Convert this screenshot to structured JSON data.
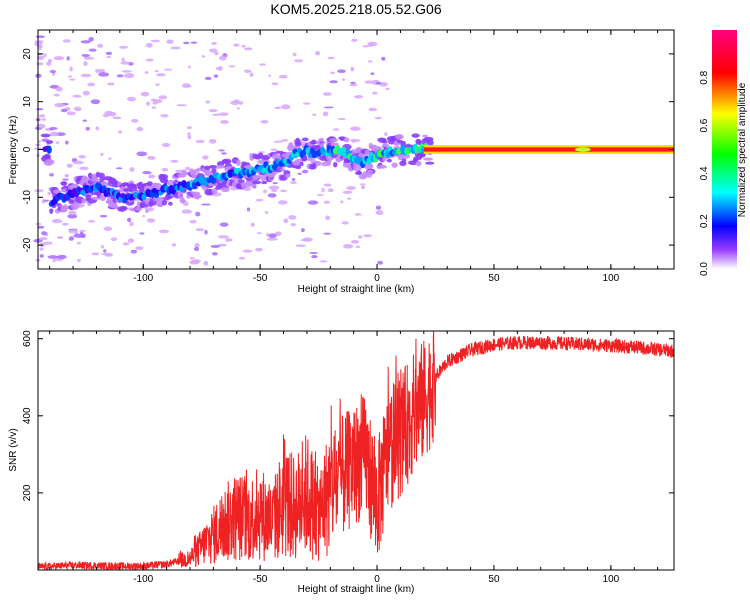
{
  "title": "KOM5.2025.218.05.52.G06",
  "chart_data": [
    {
      "type": "heatmap",
      "name": "spectrogram",
      "xlabel": "Height of straight line (km)",
      "ylabel": "Frequency (Hz)",
      "xlim": [
        -145,
        127
      ],
      "ylim": [
        -25,
        25
      ],
      "xticks": [
        -100,
        -50,
        0,
        50,
        100
      ],
      "xtick_labels": [
        "-100",
        "-50",
        "0",
        "50",
        "100"
      ],
      "yticks": [
        -20,
        -10,
        0,
        10,
        20
      ],
      "ytick_labels": [
        "-20",
        "-10",
        "0",
        "10",
        "20"
      ],
      "colorbar": {
        "label": "Normalized spectral amplitude",
        "range": [
          0,
          1
        ],
        "ticks": [
          0.0,
          0.2,
          0.4,
          0.6,
          0.8
        ],
        "tick_labels": [
          "0.0",
          "0.2",
          "0.4",
          "0.6",
          "0.8"
        ],
        "colormap": [
          "#ffffff",
          "#7b00ff",
          "#0000ff",
          "#00ffff",
          "#00ff00",
          "#ffff00",
          "#ff0000",
          "#ff0080"
        ]
      },
      "ridge": [
        {
          "x": -140,
          "y": -11
        },
        {
          "x": -130,
          "y": -9
        },
        {
          "x": -120,
          "y": -8
        },
        {
          "x": -110,
          "y": -10
        },
        {
          "x": -100,
          "y": -9.5
        },
        {
          "x": -90,
          "y": -8.5
        },
        {
          "x": -80,
          "y": -7.5
        },
        {
          "x": -70,
          "y": -6
        },
        {
          "x": -60,
          "y": -5
        },
        {
          "x": -50,
          "y": -4
        },
        {
          "x": -40,
          "y": -3
        },
        {
          "x": -35,
          "y": -1
        },
        {
          "x": -30,
          "y": -0.5
        },
        {
          "x": -25,
          "y": -1
        },
        {
          "x": -20,
          "y": -0.5
        },
        {
          "x": -15,
          "y": 0
        },
        {
          "x": -7,
          "y": -3
        },
        {
          "x": 0,
          "y": -1
        },
        {
          "x": 10,
          "y": 0
        },
        {
          "x": 20,
          "y": 0
        },
        {
          "x": 127,
          "y": 0
        }
      ]
    },
    {
      "type": "line",
      "name": "snr",
      "xlabel": "Height of straight line (km)",
      "ylabel": "SNR (v/v)",
      "xlim": [
        -145,
        127
      ],
      "ylim": [
        0,
        620
      ],
      "xticks": [
        -100,
        -50,
        0,
        50,
        100
      ],
      "xtick_labels": [
        "-100",
        "-50",
        "0",
        "50",
        "100"
      ],
      "yticks": [
        200,
        400,
        600
      ],
      "ytick_labels": [
        "200",
        "400",
        "600"
      ],
      "line_color": "#ee2222",
      "series": [
        {
          "name": "SNR",
          "x": [
            -145,
            -130,
            -110,
            -100,
            -90,
            -80,
            -75,
            -70,
            -65,
            -60,
            -55,
            -50,
            -45,
            -40,
            -35,
            -30,
            -25,
            -20,
            -15,
            -10,
            -5,
            0,
            5,
            10,
            15,
            20,
            25,
            30,
            40,
            50,
            60,
            70,
            80,
            90,
            100,
            110,
            120,
            127
          ],
          "values": [
            8,
            12,
            10,
            10,
            15,
            30,
            60,
            90,
            120,
            140,
            130,
            150,
            120,
            180,
            160,
            200,
            140,
            210,
            240,
            270,
            300,
            170,
            310,
            350,
            400,
            440,
            500,
            540,
            570,
            585,
            590,
            590,
            588,
            585,
            582,
            578,
            572,
            568
          ]
        }
      ]
    }
  ]
}
